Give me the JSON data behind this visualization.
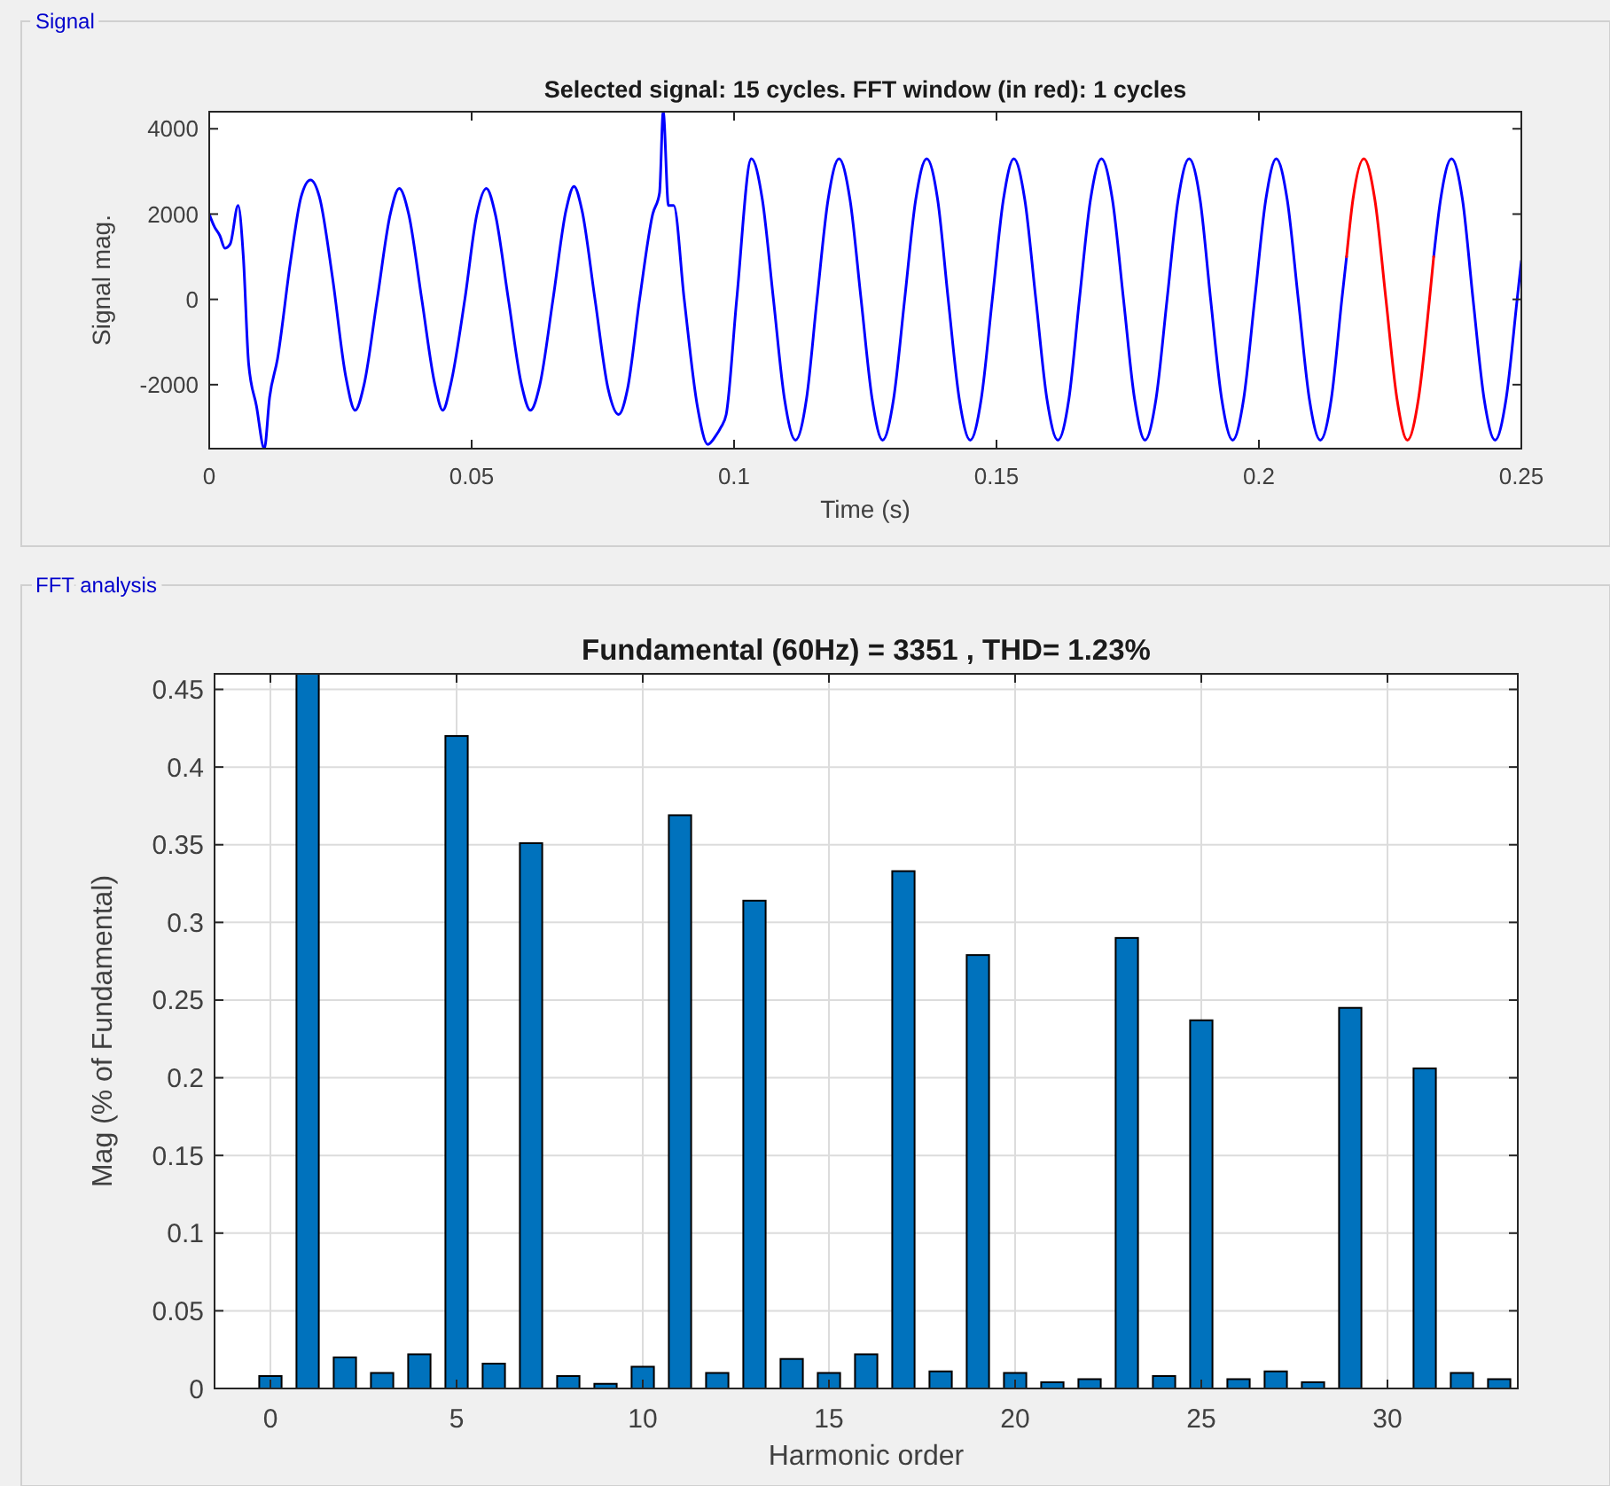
{
  "chart_data": [
    {
      "type": "line",
      "title": "Selected signal: 15 cycles. FFT window (in red): 1 cycles",
      "xlabel": "Time (s)",
      "ylabel": "Signal mag.",
      "xlim": [
        0,
        0.25
      ],
      "xticks": [
        0,
        0.05,
        0.1,
        0.15,
        0.2,
        0.25
      ],
      "ylim": [
        -3500,
        4400
      ],
      "yticks": [
        -2000,
        0,
        2000,
        4000
      ],
      "annotations": [
        "Signal"
      ],
      "series": [
        {
          "color": "#0000ff",
          "x": [
            0,
            0.001,
            0.002,
            0.003,
            0.004,
            0.0055,
            0.0065,
            0.0075,
            0.009,
            0.0105,
            0.0115,
            0.013,
            0.0155,
            0.0175,
            0.0193,
            0.021,
            0.0235,
            0.026,
            0.0278,
            0.0295,
            0.032,
            0.0345,
            0.0362,
            0.038,
            0.0405,
            0.043,
            0.0445,
            0.046,
            0.0487,
            0.051,
            0.0528,
            0.0545,
            0.057,
            0.0595,
            0.0612,
            0.063,
            0.0655,
            0.068,
            0.0695,
            0.071,
            0.0735,
            0.076,
            0.078,
            0.0797,
            0.082,
            0.0845,
            0.0858,
            0.0865,
            0.0875,
            0.0885,
            0.0905,
            0.093,
            0.095,
            0.0965,
            0.0975,
            0.0985,
            0.1005,
            0.1033,
            0.1054,
            0.1075,
            0.1096,
            0.1117,
            0.1138,
            0.1158,
            0.1179,
            0.12,
            0.1221,
            0.1242,
            0.1263,
            0.1283,
            0.1304,
            0.1325,
            0.1346,
            0.1367,
            0.1388,
            0.1408,
            0.1429,
            0.145,
            0.1471,
            0.1492,
            0.1513,
            0.1533,
            0.1554,
            0.1575,
            0.1596,
            0.1617,
            0.1638,
            0.1658,
            0.1679,
            0.17,
            0.1721,
            0.1742,
            0.1763,
            0.1783,
            0.1804,
            0.1825,
            0.1846,
            0.1867,
            0.1888,
            0.1908,
            0.1929,
            0.195,
            0.1971,
            0.1992,
            0.2013,
            0.2033,
            0.2054,
            0.2075,
            0.2096,
            0.2117,
            0.2138,
            0.2158,
            0.2167,
            0.2179,
            0.22,
            0.2221,
            0.2242,
            0.2263,
            0.2283,
            0.2304,
            0.2325,
            0.2333,
            0.2346,
            0.2367,
            0.2388,
            0.2408,
            0.2429,
            0.245,
            0.2471,
            0.2492,
            0.25
          ],
          "values": [
            2000,
            1700,
            1500,
            1200,
            1300,
            2200,
            1000,
            -1500,
            -2500,
            -3500,
            -2300,
            -1400,
            900,
            2400,
            2800,
            2400,
            500,
            -1800,
            -2600,
            -2000,
            0,
            2000,
            2600,
            2000,
            0,
            -2000,
            -2600,
            -2000,
            0,
            2000,
            2600,
            2000,
            0,
            -2000,
            -2600,
            -2000,
            0,
            2100,
            2650,
            2100,
            0,
            -2100,
            -2700,
            -2100,
            0,
            2000,
            2500,
            4400,
            2200,
            2200,
            0,
            -2500,
            -3400,
            -3200,
            -3000,
            -2700,
            0,
            3300,
            2330,
            0,
            -2330,
            -3300,
            -2330,
            0,
            2330,
            3300,
            2330,
            0,
            -2330,
            -3300,
            -2330,
            0,
            2330,
            3300,
            2330,
            0,
            -2330,
            -3300,
            -2330,
            0,
            2330,
            3300,
            2330,
            0,
            -2330,
            -3300,
            -2330,
            0,
            2330,
            3300,
            2330,
            0,
            -2330,
            -3300,
            -2330,
            0,
            2330,
            3300,
            2330,
            0,
            -2330,
            -3300,
            -2330,
            0,
            2330,
            3300,
            2330,
            0,
            -2330,
            -3300,
            -2330,
            0,
            1000,
            null,
            null,
            null,
            null,
            null,
            null,
            null,
            null,
            1000,
            2330,
            3300,
            2330,
            0,
            -2330,
            -3300,
            -2330,
            0,
            900
          ]
        },
        {
          "color": "#ff0000",
          "x": [
            0.2167,
            0.2179,
            0.22,
            0.2221,
            0.2242,
            0.2263,
            0.2283,
            0.2304,
            0.2325,
            0.2333
          ],
          "values": [
            1000,
            2330,
            3300,
            2330,
            0,
            -2330,
            -3300,
            -2330,
            0,
            1000
          ]
        }
      ]
    },
    {
      "type": "bar",
      "title": "Fundamental (60Hz) = 3351 , THD= 1.23%",
      "xlabel": "Harmonic order",
      "ylabel": "Mag (% of Fundamental)",
      "xlim": [
        -1.5,
        33.5
      ],
      "xticks": [
        0,
        5,
        10,
        15,
        20,
        25,
        30
      ],
      "ylim": [
        0,
        0.46
      ],
      "yticks": [
        0,
        0.05,
        0.1,
        0.15,
        0.2,
        0.25,
        0.3,
        0.35,
        0.4,
        0.45
      ],
      "grid": true,
      "color": "#0072bd",
      "annotations": [
        "FFT analysis"
      ],
      "x": [
        0,
        1,
        2,
        3,
        4,
        5,
        6,
        7,
        8,
        9,
        10,
        11,
        12,
        13,
        14,
        15,
        16,
        17,
        18,
        19,
        20,
        21,
        22,
        23,
        24,
        25,
        26,
        27,
        28,
        29,
        30,
        31,
        32,
        33
      ],
      "values": [
        0.008,
        0.46,
        0.02,
        0.01,
        0.022,
        0.42,
        0.016,
        0.351,
        0.008,
        0.003,
        0.014,
        0.369,
        0.01,
        0.314,
        0.019,
        0.01,
        0.022,
        0.333,
        0.011,
        0.279,
        0.01,
        0.004,
        0.006,
        0.29,
        0.008,
        0.237,
        0.006,
        0.011,
        0.004,
        0.245,
        0,
        0.206,
        0.01,
        0.006
      ]
    }
  ]
}
